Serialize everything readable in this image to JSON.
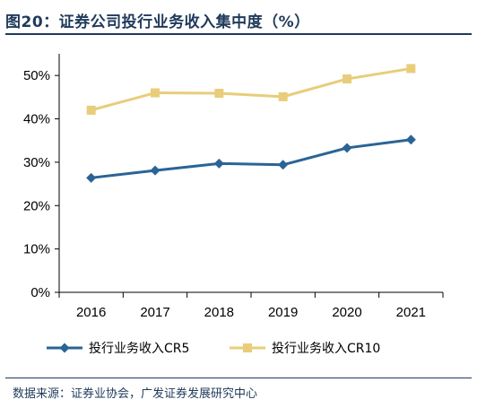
{
  "figure": {
    "title": "图20：证券公司投行业务收入集中度（%）",
    "source": "数据来源：证券业协会，广发证券发展研究中心"
  },
  "chart_data": {
    "type": "line",
    "categories": [
      "2016",
      "2017",
      "2018",
      "2019",
      "2020",
      "2021"
    ],
    "series": [
      {
        "name": "投行业务收入CR5",
        "color": "#2a6496",
        "marker": "diamond",
        "values": [
          26.4,
          28.1,
          29.7,
          29.4,
          33.3,
          35.2
        ]
      },
      {
        "name": "投行业务收入CR10",
        "color": "#e8cd7a",
        "marker": "square",
        "values": [
          42.0,
          46.0,
          45.9,
          45.1,
          49.2,
          51.6
        ]
      }
    ],
    "ylim": [
      0,
      55
    ],
    "yticks": [
      0,
      10,
      20,
      30,
      40,
      50
    ],
    "ytick_labels": [
      "0%",
      "10%",
      "20%",
      "30%",
      "40%",
      "50%"
    ],
    "y_format": "percent",
    "grid": false,
    "legend_position": "bottom"
  }
}
